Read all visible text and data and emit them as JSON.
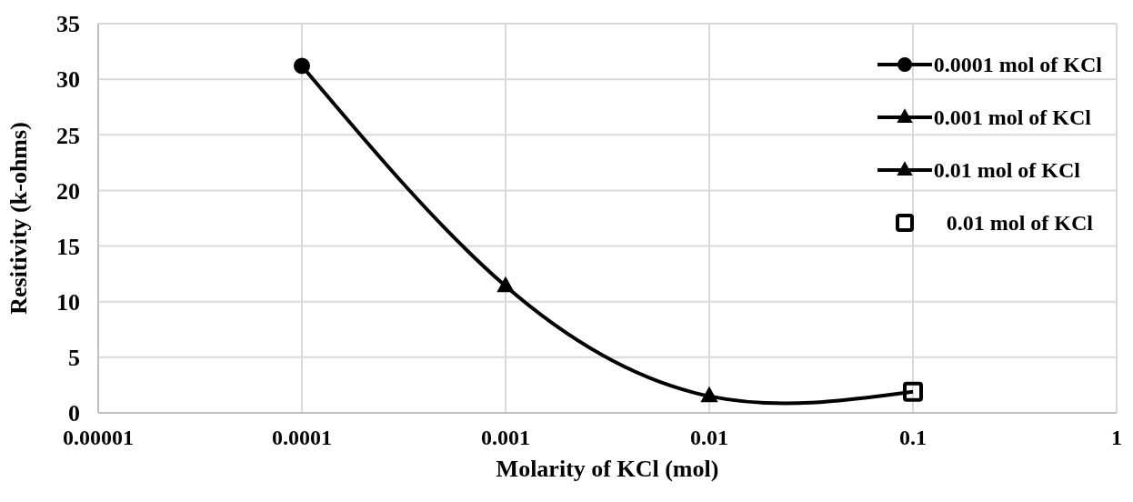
{
  "chart_data": {
    "type": "line",
    "xlabel": "Molarity of KCl (mol)",
    "ylabel": "Resitivity (k-ohms)",
    "xlim": [
      1e-05,
      1
    ],
    "xticks": [
      {
        "value": 1e-05,
        "label": "0.00001"
      },
      {
        "value": 0.0001,
        "label": "0.0001"
      },
      {
        "value": 0.001,
        "label": "0.001"
      },
      {
        "value": 0.01,
        "label": "0.01"
      },
      {
        "value": 0.1,
        "label": "0.1"
      },
      {
        "value": 1,
        "label": "1"
      }
    ],
    "ylim": [
      0,
      35
    ],
    "yticks": [
      0,
      5,
      10,
      15,
      20,
      25,
      30,
      35
    ],
    "log": "x",
    "grid": true,
    "legend": "top right",
    "line_style": "solid",
    "series": [
      {
        "marker": "none",
        "color": "#000000",
        "x": [
          0.0001,
          0.001,
          0.01,
          0.1
        ],
        "values": [
          31.2,
          11.4,
          1.5,
          1.9
        ]
      },
      {
        "name": "0.0001 mol of KCl",
        "marker": "circle",
        "color": "#000000",
        "x": [
          0.0001
        ],
        "values": [
          31.2
        ]
      },
      {
        "name": "0.001 mol of KCl",
        "marker": "triangle",
        "color": "#000000",
        "x": [
          0.001
        ],
        "values": [
          11.4
        ]
      },
      {
        "name": "0.01 mol of KCl",
        "marker": "triangle",
        "color": "#000000",
        "x": [
          0.01
        ],
        "values": [
          1.5
        ]
      },
      {
        "type": "scatter",
        "name": "0.01 mol of KCl",
        "marker": "square",
        "color": "#000000",
        "x": [
          0.1
        ],
        "values": [
          1.9
        ]
      }
    ]
  }
}
